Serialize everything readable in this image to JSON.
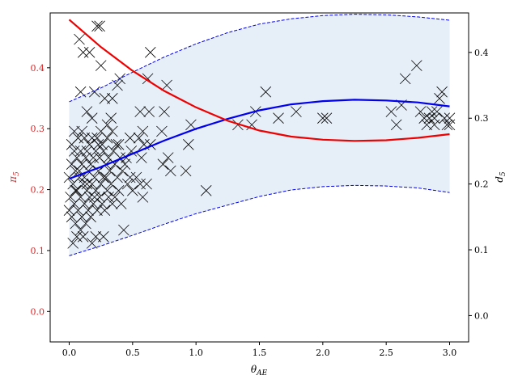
{
  "chart_data": {
    "type": "scatter",
    "xlabel": "θ_AE",
    "ylabel_left": "π_5",
    "ylabel_right": "d_5",
    "xlim": [
      -0.15,
      3.15
    ],
    "ylim_left": [
      -0.05,
      0.49
    ],
    "ylim_right": [
      -0.04,
      0.46
    ],
    "x_ticks": [
      "0.0",
      "0.5",
      "1.0",
      "1.5",
      "2.0",
      "2.5",
      "3.0"
    ],
    "left_ticks": [
      "0.0",
      "0.1",
      "0.2",
      "0.3",
      "0.4"
    ],
    "right_ticks": [
      "0.0",
      "0.1",
      "0.2",
      "0.3",
      "0.4"
    ],
    "grid": false,
    "colors": {
      "pi_curve": "#ee0000",
      "left_axis_text": "#d62728",
      "mean_curve": "#0000ee",
      "band_fill": "#e6eef7",
      "markers": "#000000"
    },
    "series": [
      {
        "axis": "left",
        "style": "red-solid",
        "x": [
          0.0,
          0.25,
          0.5,
          0.75,
          1.0,
          1.25,
          1.5,
          1.75,
          2.0,
          2.25,
          2.5,
          2.75,
          3.0
        ],
        "y": [
          0.479,
          0.434,
          0.395,
          0.362,
          0.335,
          0.313,
          0.297,
          0.287,
          0.282,
          0.28,
          0.281,
          0.285,
          0.291
        ]
      },
      {
        "axis": "right",
        "style": "blue-solid",
        "x": [
          0.0,
          0.25,
          0.5,
          0.75,
          1.0,
          1.25,
          1.5,
          1.75,
          2.0,
          2.25,
          2.5,
          2.75,
          3.0
        ],
        "y": [
          0.208,
          0.226,
          0.246,
          0.266,
          0.284,
          0.299,
          0.312,
          0.321,
          0.326,
          0.328,
          0.327,
          0.324,
          0.318
        ]
      },
      {
        "axis": "right",
        "style": "blue-dashed-upper",
        "x": [
          0.0,
          0.25,
          0.5,
          0.75,
          1.0,
          1.25,
          1.5,
          1.75,
          2.0,
          2.25,
          2.5,
          2.75,
          3.0
        ],
        "y": [
          0.325,
          0.346,
          0.37,
          0.393,
          0.413,
          0.43,
          0.443,
          0.451,
          0.456,
          0.458,
          0.457,
          0.454,
          0.449
        ]
      },
      {
        "axis": "right",
        "style": "blue-dashed-lower",
        "x": [
          0.0,
          0.25,
          0.5,
          0.75,
          1.0,
          1.25,
          1.5,
          1.75,
          2.0,
          2.25,
          2.5,
          2.75,
          3.0
        ],
        "y": [
          0.091,
          0.106,
          0.122,
          0.139,
          0.155,
          0.168,
          0.181,
          0.191,
          0.196,
          0.198,
          0.197,
          0.194,
          0.187
        ]
      },
      {
        "axis": "right",
        "style": "x-markers",
        "points": [
          [
            0.22,
            0.44
          ],
          [
            0.24,
            0.44
          ],
          [
            0.64,
            0.4
          ],
          [
            0.08,
            0.42
          ],
          [
            0.16,
            0.4
          ],
          [
            0.11,
            0.4
          ],
          [
            0.25,
            0.38
          ],
          [
            0.09,
            0.34
          ],
          [
            0.2,
            0.34
          ],
          [
            0.38,
            0.35
          ],
          [
            0.4,
            0.36
          ],
          [
            0.62,
            0.36
          ],
          [
            0.77,
            0.35
          ],
          [
            0.28,
            0.33
          ],
          [
            0.34,
            0.33
          ],
          [
            0.56,
            0.31
          ],
          [
            0.63,
            0.31
          ],
          [
            0.75,
            0.31
          ],
          [
            0.14,
            0.31
          ],
          [
            0.18,
            0.3
          ],
          [
            0.33,
            0.3
          ],
          [
            0.3,
            0.29
          ],
          [
            0.96,
            0.29
          ],
          [
            0.04,
            0.28
          ],
          [
            0.1,
            0.28
          ],
          [
            0.25,
            0.28
          ],
          [
            0.34,
            0.28
          ],
          [
            0.58,
            0.28
          ],
          [
            0.73,
            0.28
          ],
          [
            0.07,
            0.27
          ],
          [
            0.12,
            0.27
          ],
          [
            0.18,
            0.27
          ],
          [
            0.22,
            0.27
          ],
          [
            0.3,
            0.27
          ],
          [
            0.48,
            0.27
          ],
          [
            0.55,
            0.27
          ],
          [
            0.64,
            0.26
          ],
          [
            0.94,
            0.26
          ],
          [
            0.02,
            0.26
          ],
          [
            0.16,
            0.26
          ],
          [
            0.26,
            0.26
          ],
          [
            0.39,
            0.26
          ],
          [
            0.49,
            0.25
          ],
          [
            0.59,
            0.26
          ],
          [
            0.04,
            0.25
          ],
          [
            0.09,
            0.25
          ],
          [
            0.14,
            0.25
          ],
          [
            0.21,
            0.25
          ],
          [
            0.27,
            0.25
          ],
          [
            0.35,
            0.25
          ],
          [
            0.45,
            0.24
          ],
          [
            0.78,
            0.24
          ],
          [
            0.06,
            0.24
          ],
          [
            0.13,
            0.24
          ],
          [
            0.19,
            0.24
          ],
          [
            0.24,
            0.24
          ],
          [
            0.31,
            0.24
          ],
          [
            0.4,
            0.24
          ],
          [
            0.57,
            0.24
          ],
          [
            0.02,
            0.23
          ],
          [
            0.1,
            0.23
          ],
          [
            0.17,
            0.23
          ],
          [
            0.29,
            0.23
          ],
          [
            0.36,
            0.23
          ],
          [
            0.44,
            0.23
          ],
          [
            0.74,
            0.23
          ],
          [
            0.8,
            0.22
          ],
          [
            0.92,
            0.22
          ],
          [
            0.05,
            0.22
          ],
          [
            0.15,
            0.22
          ],
          [
            0.23,
            0.22
          ],
          [
            0.32,
            0.22
          ],
          [
            0.42,
            0.22
          ],
          [
            0.0,
            0.21
          ],
          [
            0.08,
            0.21
          ],
          [
            0.12,
            0.21
          ],
          [
            0.2,
            0.21
          ],
          [
            0.27,
            0.21
          ],
          [
            0.38,
            0.21
          ],
          [
            0.48,
            0.21
          ],
          [
            0.53,
            0.21
          ],
          [
            0.03,
            0.2
          ],
          [
            0.11,
            0.2
          ],
          [
            0.18,
            0.2
          ],
          [
            0.25,
            0.2
          ],
          [
            0.33,
            0.2
          ],
          [
            0.46,
            0.2
          ],
          [
            0.56,
            0.2
          ],
          [
            0.61,
            0.2
          ],
          [
            0.06,
            0.19
          ],
          [
            0.14,
            0.19
          ],
          [
            0.21,
            0.19
          ],
          [
            0.3,
            0.19
          ],
          [
            0.39,
            0.19
          ],
          [
            0.5,
            0.19
          ],
          [
            0.01,
            0.18
          ],
          [
            0.09,
            0.18
          ],
          [
            0.16,
            0.18
          ],
          [
            0.24,
            0.18
          ],
          [
            0.31,
            0.18
          ],
          [
            0.36,
            0.18
          ],
          [
            0.58,
            0.18
          ],
          [
            0.04,
            0.17
          ],
          [
            0.12,
            0.17
          ],
          [
            0.19,
            0.17
          ],
          [
            0.26,
            0.17
          ],
          [
            0.34,
            0.17
          ],
          [
            0.41,
            0.17
          ],
          [
            0.07,
            0.16
          ],
          [
            0.15,
            0.16
          ],
          [
            0.22,
            0.16
          ],
          [
            0.28,
            0.16
          ],
          [
            0.02,
            0.15
          ],
          [
            0.1,
            0.15
          ],
          [
            0.17,
            0.15
          ],
          [
            0.05,
            0.14
          ],
          [
            0.13,
            0.14
          ],
          [
            0.09,
            0.13
          ],
          [
            0.43,
            0.13
          ],
          [
            0.06,
            0.12
          ],
          [
            0.11,
            0.12
          ],
          [
            0.21,
            0.12
          ],
          [
            0.27,
            0.12
          ],
          [
            0.03,
            0.11
          ],
          [
            0.18,
            0.11
          ],
          [
            0.0,
            0.16
          ],
          [
            0.05,
            0.19
          ],
          [
            0.08,
            0.22
          ],
          [
            0.14,
            0.2
          ],
          [
            0.2,
            0.18
          ],
          [
            0.23,
            0.26
          ],
          [
            0.29,
            0.21
          ],
          [
            0.37,
            0.26
          ],
          [
            1.08,
            0.19
          ],
          [
            1.33,
            0.29
          ],
          [
            1.44,
            0.29
          ],
          [
            1.47,
            0.31
          ],
          [
            1.55,
            0.34
          ],
          [
            1.65,
            0.3
          ],
          [
            1.79,
            0.31
          ],
          [
            2.0,
            0.3
          ],
          [
            2.03,
            0.3
          ],
          [
            2.54,
            0.31
          ],
          [
            2.58,
            0.29
          ],
          [
            2.62,
            0.32
          ],
          [
            2.65,
            0.36
          ],
          [
            2.74,
            0.38
          ],
          [
            2.77,
            0.31
          ],
          [
            2.82,
            0.29
          ],
          [
            2.84,
            0.3
          ],
          [
            2.86,
            0.31
          ],
          [
            2.88,
            0.29
          ],
          [
            2.9,
            0.31
          ],
          [
            2.92,
            0.33
          ],
          [
            2.94,
            0.34
          ],
          [
            2.96,
            0.3
          ],
          [
            2.98,
            0.29
          ],
          [
            3.0,
            0.3
          ],
          [
            3.0,
            0.29
          ],
          [
            2.88,
            0.3
          ],
          [
            2.8,
            0.3
          ]
        ]
      }
    ]
  }
}
